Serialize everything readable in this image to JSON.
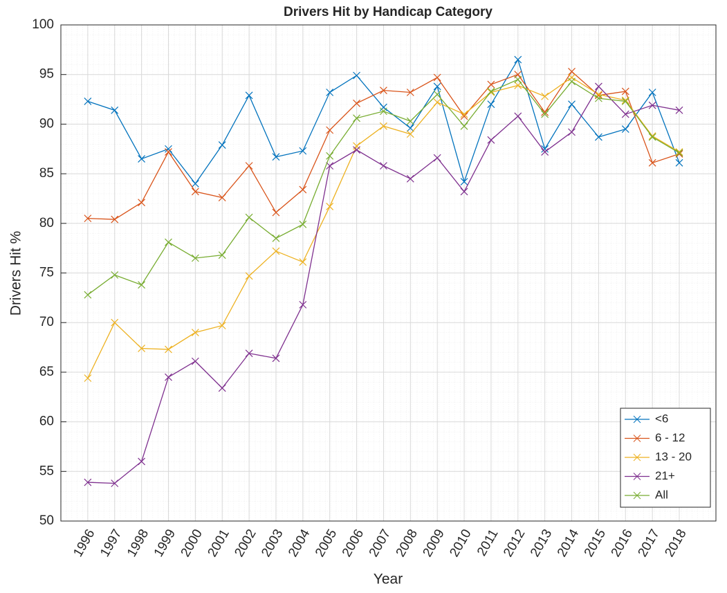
{
  "chart_data": {
    "type": "line",
    "title": "Drivers Hit by Handicap Category",
    "x_label": "Year",
    "y_label": "Drivers Hit %",
    "categories": [
      "1996",
      "1997",
      "1998",
      "1999",
      "2000",
      "2001",
      "2002",
      "2003",
      "2004",
      "2005",
      "2006",
      "2007",
      "2008",
      "2009",
      "2010",
      "2011",
      "2012",
      "2013",
      "2014",
      "2015",
      "2016",
      "2017",
      "2018"
    ],
    "series": [
      {
        "name": "<6",
        "color": "#0072BD",
        "values": [
          92.3,
          91.4,
          86.5,
          87.5,
          84.0,
          87.9,
          92.9,
          86.7,
          87.3,
          93.2,
          94.9,
          91.7,
          89.6,
          93.8,
          84.2,
          92.0,
          96.5,
          87.5,
          92.0,
          88.7,
          89.5,
          93.2,
          86.1
        ]
      },
      {
        "name": "6 - 12",
        "color": "#D95319",
        "values": [
          80.5,
          80.4,
          82.1,
          87.2,
          83.2,
          82.6,
          85.8,
          81.1,
          83.4,
          89.4,
          92.1,
          93.4,
          93.2,
          94.7,
          90.8,
          94.0,
          95.0,
          91.2,
          95.3,
          92.9,
          93.3,
          86.1,
          87.0
        ]
      },
      {
        "name": "13 - 20",
        "color": "#EDB120",
        "values": [
          64.4,
          70.0,
          67.4,
          67.3,
          69.0,
          69.7,
          74.7,
          77.2,
          76.1,
          81.7,
          87.8,
          89.8,
          89.0,
          92.2,
          91.0,
          93.2,
          93.9,
          92.8,
          94.7,
          93.0,
          92.4,
          88.8,
          87.2
        ]
      },
      {
        "name": "21+",
        "color": "#7E2F8E",
        "values": [
          53.9,
          53.8,
          56.0,
          64.5,
          66.1,
          63.4,
          66.9,
          66.4,
          71.8,
          85.8,
          87.4,
          85.8,
          84.5,
          86.6,
          83.2,
          88.4,
          90.8,
          87.2,
          89.2,
          93.8,
          91.0,
          91.9,
          91.4
        ]
      },
      {
        "name": "All",
        "color": "#77AC30",
        "values": [
          72.8,
          74.8,
          73.8,
          78.1,
          76.5,
          76.8,
          80.6,
          78.5,
          79.9,
          86.8,
          90.6,
          91.3,
          90.3,
          93.0,
          89.8,
          93.3,
          94.5,
          91.0,
          94.3,
          92.6,
          92.3,
          88.7,
          87.1
        ]
      }
    ],
    "ylim": [
      50,
      100
    ],
    "yticks": [
      50,
      55,
      60,
      65,
      70,
      75,
      80,
      85,
      90,
      95,
      100
    ],
    "grid": true,
    "legend_position": "lower right"
  }
}
